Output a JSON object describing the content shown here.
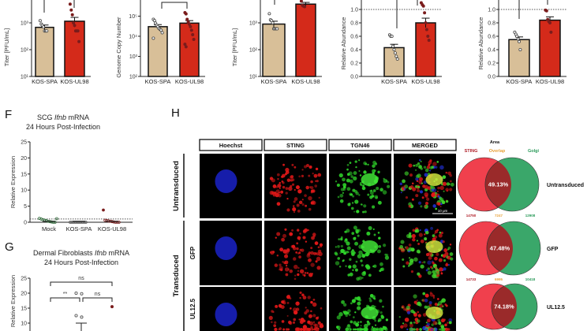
{
  "colors": {
    "tan": "#d8bf98",
    "red": "#d42a1a",
    "dark_red": "#7a1c1c",
    "green_point": "#2f6b3a",
    "sting": "#f0404d",
    "golgi": "#3aa76a",
    "overlap_text": "#e8a33b",
    "overlap_fill": "#9a2a2a"
  },
  "chart_data": [
    {
      "type": "bar",
      "ylabel": "Titer [PFU/mL]",
      "scale": "log",
      "ylim": [
        10,
        10000
      ],
      "ticks": [
        {
          "v": 10,
          "label": "10¹"
        },
        {
          "v": 100,
          "label": "10²"
        },
        {
          "v": 1000,
          "label": "10³"
        }
      ],
      "categories": [
        "KOS-SPA",
        "KOS-UL98"
      ],
      "values": [
        680,
        1150
      ],
      "sem": [
        150,
        450
      ],
      "points": [
        [
          1200,
          900,
          800,
          700,
          500,
          500,
          500
        ],
        [
          5000,
          3000,
          2000,
          1000,
          800,
          500,
          500,
          500,
          200
        ]
      ]
    },
    {
      "type": "bar",
      "ylabel": "Genome Copy Number",
      "scale": "log",
      "ylim": [
        100,
        1000000
      ],
      "ticks": [
        {
          "v": 100,
          "label": "10²"
        },
        {
          "v": 1000,
          "label": "10³"
        },
        {
          "v": 10000,
          "label": "10⁴"
        },
        {
          "v": 100000,
          "label": "10⁵"
        }
      ],
      "categories": [
        "KOS-SPA",
        "KOS-UL98"
      ],
      "values": [
        30000,
        45000
      ],
      "sem": [
        8000,
        15000
      ],
      "points": [
        [
          70000,
          60000,
          45000,
          35000,
          30000,
          25000,
          22000,
          20000,
          15000,
          8000
        ],
        [
          150000,
          130000,
          70000,
          50000,
          40000,
          30000,
          20000,
          12000,
          7000,
          4000,
          3000
        ]
      ]
    },
    {
      "type": "bar",
      "ylabel": "Titer [PFU/mL]",
      "scale": "log",
      "ylim": [
        10,
        10000
      ],
      "ticks": [
        {
          "v": 10,
          "label": "10¹"
        },
        {
          "v": 100,
          "label": "10²"
        },
        {
          "v": 1000,
          "label": "10³"
        }
      ],
      "categories": [
        "KOS-SPA",
        "KOS-UL98"
      ],
      "values": [
        900,
        5000
      ],
      "sem": [
        250,
        800
      ],
      "points": [
        [
          2200,
          1300,
          1200,
          1000,
          600,
          600,
          600,
          600
        ],
        [
          6500,
          4500,
          4200,
          4000
        ]
      ]
    },
    {
      "type": "bar",
      "ylabel": "Relative Abundance",
      "scale": "linear",
      "ylim": [
        0,
        1.2
      ],
      "ticks": [
        {
          "v": 0,
          "label": "0.0"
        },
        {
          "v": 0.2,
          "label": "0.2"
        },
        {
          "v": 0.4,
          "label": "0.4"
        },
        {
          "v": 0.6,
          "label": "0.6"
        },
        {
          "v": 0.8,
          "label": "0.8"
        },
        {
          "v": 1.0,
          "label": "1.0"
        }
      ],
      "reference_line": 1.0,
      "categories": [
        "KOS-SPA",
        "KOS-UL98"
      ],
      "values": [
        0.43,
        0.8
      ],
      "sem": [
        0.05,
        0.07
      ],
      "points": [
        [
          0.62,
          0.6,
          0.6,
          0.45,
          0.4,
          0.35,
          0.3,
          0.26
        ],
        [
          1.1,
          1.07,
          1.05,
          0.95,
          0.8,
          0.7,
          0.6,
          0.54
        ]
      ]
    },
    {
      "type": "bar",
      "ylabel": "Relative Abundance",
      "scale": "linear",
      "ylim": [
        0,
        1.2
      ],
      "ticks": [
        {
          "v": 0,
          "label": "0.0"
        },
        {
          "v": 0.2,
          "label": "0.2"
        },
        {
          "v": 0.4,
          "label": "0.4"
        },
        {
          "v": 0.6,
          "label": "0.6"
        },
        {
          "v": 0.8,
          "label": "0.8"
        },
        {
          "v": 1.0,
          "label": "1.0"
        }
      ],
      "reference_line": 1.0,
      "categories": [
        "KOS-SPA",
        "KOS-UL98"
      ],
      "values": [
        0.55,
        0.84
      ],
      "sem": [
        0.04,
        0.05
      ],
      "points": [
        [
          0.66,
          0.63,
          0.6,
          0.56,
          0.52,
          0.4
        ],
        [
          0.99,
          0.98,
          0.85,
          0.82,
          0.8,
          0.66
        ]
      ]
    },
    {
      "type": "scatter",
      "panel": "F",
      "title_prefix": "SCG ",
      "title_italic": "Ifnb",
      "title_suffix": " mRNA",
      "subtitle": "24 Hours Post-Infection",
      "ylabel": "Relative Expression",
      "ylim": [
        0,
        25
      ],
      "ticks": [
        0,
        5,
        10,
        15,
        20,
        25
      ],
      "reference_line": 1,
      "categories": [
        "Mock",
        "KOS-SPA",
        "KOS-UL98"
      ],
      "points": [
        [
          1.2,
          1.0,
          0.8,
          0.6,
          0.5,
          0.3,
          0.2,
          0.1,
          0,
          0,
          1.1
        ],
        [
          0,
          0,
          0,
          0,
          0,
          0,
          0,
          0,
          0,
          0
        ],
        [
          3.8,
          0.6,
          0.5,
          0.4,
          0.3,
          0.2,
          0.1,
          0,
          0,
          0
        ]
      ]
    },
    {
      "type": "scatter",
      "panel": "G",
      "title_prefix": "Dermal Fibroblasts ",
      "title_italic": "Ifnb",
      "title_suffix": " mRNA",
      "subtitle": "24 Hours Post-Infection",
      "ylabel": "Relative Expression",
      "ylim": [
        0,
        25
      ],
      "ticks": [
        10,
        15,
        20,
        25
      ],
      "points": [
        {
          "cat": 1,
          "v": 20
        },
        {
          "cat": 1,
          "v": 19.8
        },
        {
          "cat": 1,
          "v": 12.5
        },
        {
          "cat": 1,
          "v": 12
        },
        {
          "cat": 2,
          "v": 15.5
        }
      ],
      "mean_line": {
        "cat": 1,
        "v": 10
      },
      "significance": [
        {
          "from": 0,
          "to": 2,
          "label": "ns"
        },
        {
          "from": 0,
          "to": 1,
          "label": "**"
        },
        {
          "from": 1,
          "to": 2,
          "label": "ns"
        }
      ]
    }
  ],
  "panel_labels": {
    "F": "F",
    "G": "G",
    "H": "H"
  },
  "microscopy": {
    "channels": [
      "Hoechst",
      "STING",
      "TGN46",
      "MERGED"
    ],
    "group_label": "Transduced",
    "rows": [
      {
        "label": "Untransduced"
      },
      {
        "label": "GFP"
      },
      {
        "label": "UL12.5"
      }
    ],
    "scale_bar": "10 μm"
  },
  "venn": {
    "title": "Area",
    "left_label": "STING",
    "middle_label": "Overlap",
    "right_label": "Golgi",
    "rows": [
      {
        "label": "Untransduced",
        "percent": "49.13%",
        "sting": "14750",
        "overlap": "7247",
        "golgi": "12908"
      },
      {
        "label": "GFP",
        "percent": "47.48%",
        "sting": "14733",
        "overlap": "6995",
        "golgi": "10418"
      },
      {
        "label": "UL12.5",
        "percent": "74.18%"
      }
    ]
  }
}
